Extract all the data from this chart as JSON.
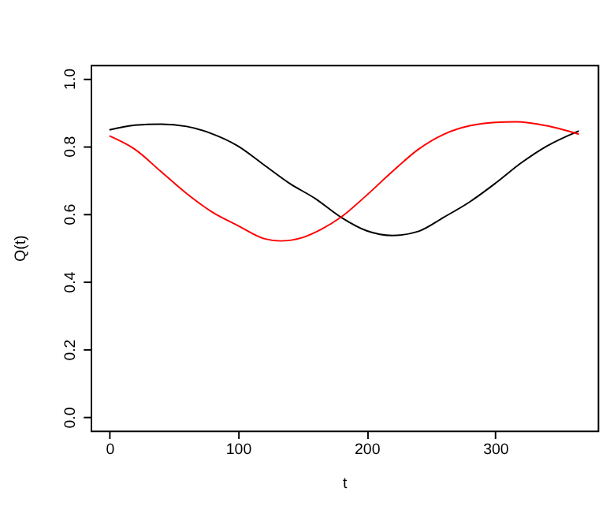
{
  "chart_data": {
    "type": "line",
    "xlabel": "t",
    "ylabel": "Q(t)",
    "xlim": [
      -14.6,
      379.6
    ],
    "ylim": [
      -0.04,
      1.04
    ],
    "xticks": [
      0,
      100,
      200,
      300
    ],
    "yticks": [
      {
        "value": 0,
        "label": "0.0"
      },
      0.2,
      0.4,
      0.6,
      0.8,
      {
        "value": 1,
        "label": "1.0"
      }
    ],
    "grid": false,
    "line_style": "solid",
    "marker": "none",
    "series": [
      {
        "color": "#000000",
        "x": [
          0,
          20,
          40,
          60,
          80,
          100,
          120,
          140,
          160,
          180,
          200,
          220,
          240,
          260,
          280,
          300,
          320,
          340,
          365
        ],
        "values": [
          0.848,
          0.862,
          0.865,
          0.858,
          0.836,
          0.8,
          0.745,
          0.69,
          0.645,
          0.59,
          0.55,
          0.536,
          0.548,
          0.59,
          0.635,
          0.69,
          0.75,
          0.8,
          0.845
        ]
      },
      {
        "color": "#ff0000",
        "x": [
          0,
          20,
          40,
          60,
          80,
          100,
          120,
          133,
          150,
          165,
          180,
          200,
          220,
          240,
          260,
          280,
          300,
          316,
          340,
          365
        ],
        "values": [
          0.83,
          0.79,
          0.725,
          0.66,
          0.605,
          0.565,
          0.527,
          0.52,
          0.53,
          0.555,
          0.59,
          0.655,
          0.725,
          0.79,
          0.835,
          0.86,
          0.87,
          0.872,
          0.86,
          0.835
        ]
      }
    ]
  }
}
